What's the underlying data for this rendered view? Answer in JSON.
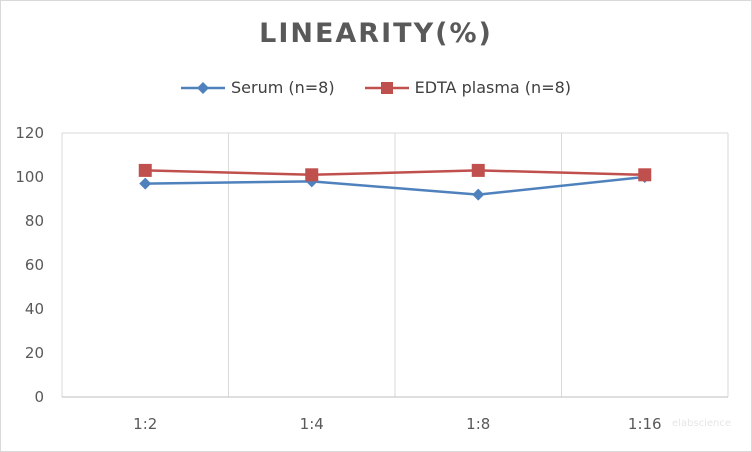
{
  "chart_data": {
    "type": "line",
    "title": "LINEARITY(%)",
    "xlabel": "",
    "ylabel": "",
    "categories": [
      "1:2",
      "1:4",
      "1:8",
      "1:16"
    ],
    "ylim": [
      0,
      120
    ],
    "yticks": [
      0,
      20,
      40,
      60,
      80,
      100,
      120
    ],
    "grid": "vertical",
    "legend": "top-center",
    "series": [
      {
        "name": "Serum (n=8)",
        "values": [
          97,
          98,
          92,
          100
        ],
        "color": "#4f81bd",
        "marker": "diamond"
      },
      {
        "name": "EDTA plasma (n=8)",
        "values": [
          103,
          101,
          103,
          101
        ],
        "color": "#c0504d",
        "marker": "square"
      }
    ]
  },
  "watermark": "elabscience"
}
